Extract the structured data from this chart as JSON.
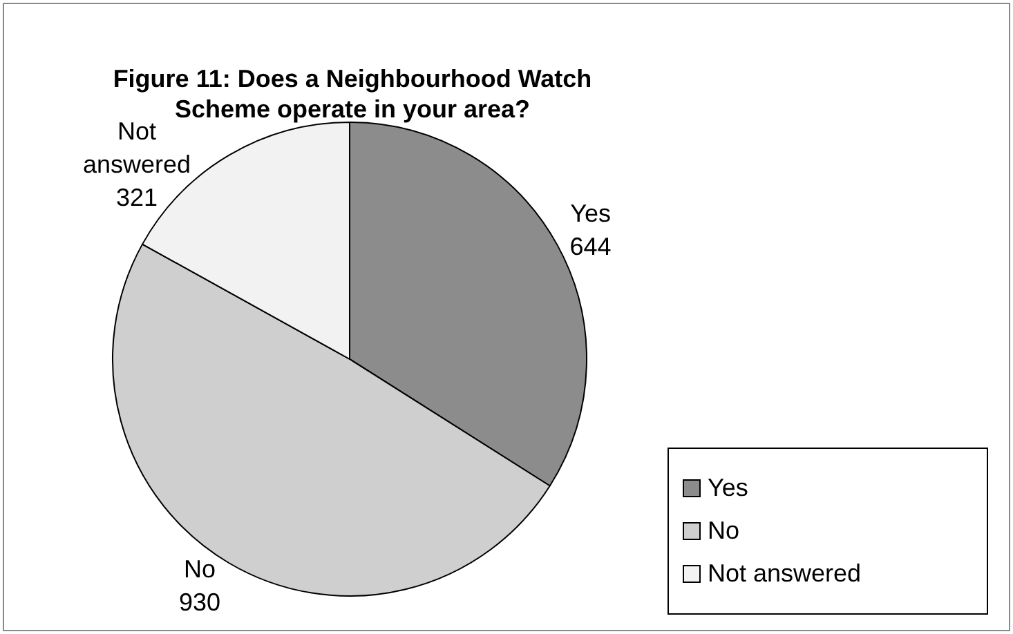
{
  "chart_data": {
    "type": "pie",
    "title": "Figure 11: Does a Neighbourhood Watch Scheme operate in your area?",
    "categories": [
      "Yes",
      "No",
      "Not answered"
    ],
    "values": [
      644,
      930,
      321
    ],
    "colors": [
      "#8c8c8c",
      "#cfcfcf",
      "#f2f2f2"
    ],
    "data_labels": true,
    "legend": "bottom right"
  }
}
